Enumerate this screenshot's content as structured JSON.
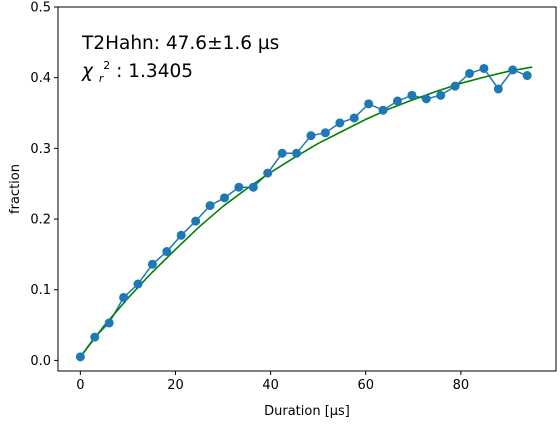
{
  "chart_data": {
    "type": "scatter",
    "title": "",
    "xlabel": "Duration [µs]",
    "ylabel": "fraction",
    "xlim": [
      -4.7,
      100.0
    ],
    "ylim": [
      -0.015,
      0.5
    ],
    "x_ticks": [
      0,
      20,
      40,
      60,
      80
    ],
    "x_tick_labels": [
      "0",
      "20",
      "40",
      "60",
      "80"
    ],
    "y_ticks": [
      0.0,
      0.1,
      0.2,
      0.3,
      0.4,
      0.5
    ],
    "y_tick_labels": [
      "0.0",
      "0.1",
      "0.2",
      "0.3",
      "0.4",
      "0.5"
    ],
    "grid": false,
    "annotations": {
      "line1": "T2Hahn: 47.6±1.6 µs",
      "chi_symbol": "χ",
      "chi_sub": "r",
      "chi_sup": "2",
      "chi_value": ": 1.3405"
    },
    "series": [
      {
        "kind": "data",
        "color": "#1f77b4",
        "x": [
          0,
          3.03,
          6.06,
          9.09,
          12.12,
          15.15,
          18.18,
          21.21,
          24.24,
          27.27,
          30.3,
          33.33,
          36.36,
          39.39,
          42.42,
          45.45,
          48.48,
          51.52,
          54.55,
          57.58,
          60.61,
          63.64,
          66.67,
          69.7,
          72.73,
          75.76,
          78.79,
          81.82,
          84.85,
          87.88,
          90.91,
          93.94
        ],
        "y": [
          0.005,
          0.033,
          0.053,
          0.089,
          0.108,
          0.136,
          0.154,
          0.177,
          0.197,
          0.219,
          0.23,
          0.245,
          0.245,
          0.265,
          0.293,
          0.293,
          0.318,
          0.322,
          0.336,
          0.343,
          0.363,
          0.354,
          0.367,
          0.375,
          0.37,
          0.375,
          0.388,
          0.406,
          0.413,
          0.384,
          0.411,
          0.403
        ]
      },
      {
        "kind": "fit",
        "color": "#008000",
        "x": [
          0,
          5,
          10,
          15,
          20,
          25,
          30,
          35,
          40,
          45,
          50,
          55,
          60,
          65,
          70,
          75,
          80,
          85,
          90,
          95
        ],
        "y": [
          0.005,
          0.049,
          0.088,
          0.124,
          0.157,
          0.189,
          0.218,
          0.243,
          0.266,
          0.287,
          0.307,
          0.324,
          0.341,
          0.356,
          0.369,
          0.381,
          0.392,
          0.401,
          0.409,
          0.415
        ]
      }
    ]
  }
}
